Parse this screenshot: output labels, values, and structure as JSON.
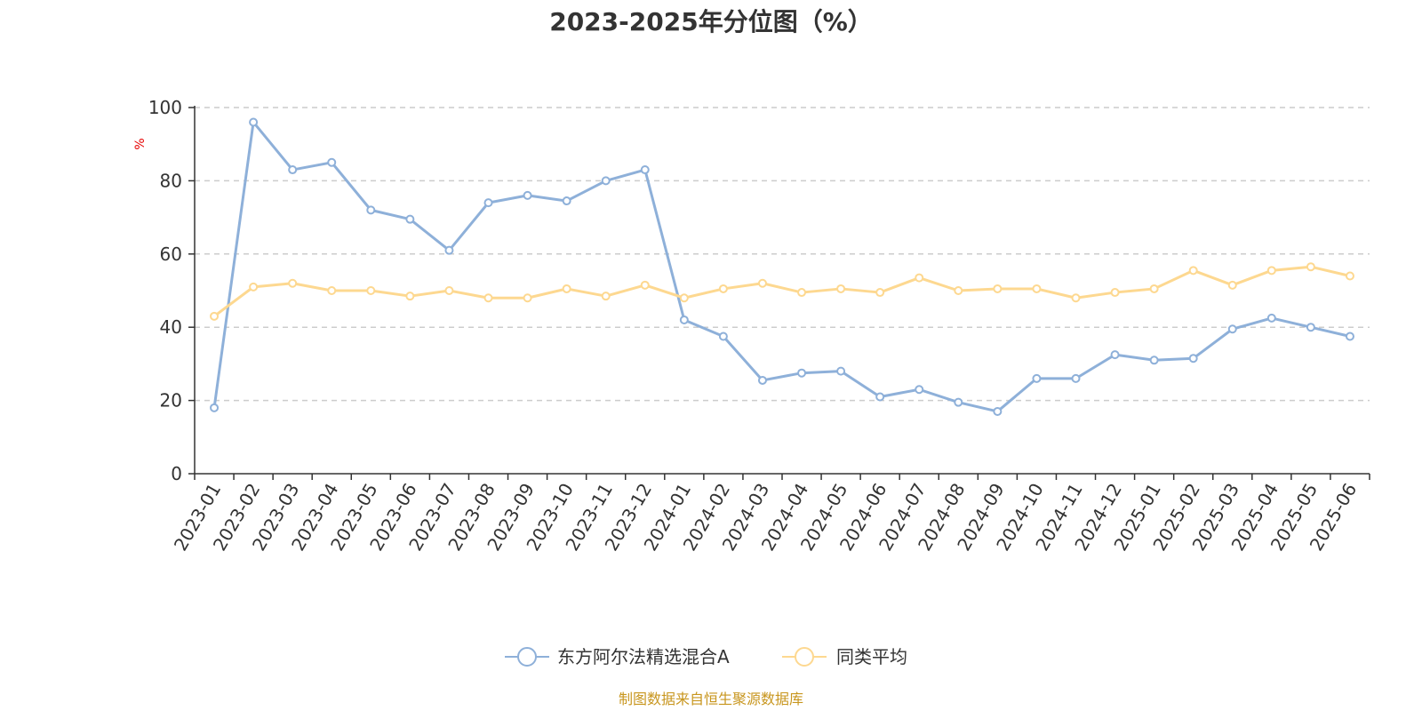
{
  "chart_data": {
    "type": "line",
    "title": "2023-2025年分位图（%）",
    "ylabel": "%",
    "ylim": [
      0,
      100
    ],
    "yticks": [
      0,
      20,
      40,
      60,
      80,
      100
    ],
    "grid": true,
    "legend_position": "bottom",
    "categories": [
      "2023-01",
      "2023-02",
      "2023-03",
      "2023-04",
      "2023-05",
      "2023-06",
      "2023-07",
      "2023-08",
      "2023-09",
      "2023-10",
      "2023-11",
      "2023-12",
      "2024-01",
      "2024-02",
      "2024-03",
      "2024-04",
      "2024-05",
      "2024-06",
      "2024-07",
      "2024-08",
      "2024-09",
      "2024-10",
      "2024-11",
      "2024-12",
      "2025-01",
      "2025-02",
      "2025-03",
      "2025-04",
      "2025-05",
      "2025-06"
    ],
    "series": [
      {
        "name": "东方阿尔法精选混合A",
        "color": "#8eb0d9",
        "values": [
          18,
          96,
          83,
          85,
          72,
          69.5,
          61,
          74,
          76,
          74.5,
          80,
          83,
          42,
          37.5,
          25.5,
          27.5,
          28,
          21,
          23,
          19.5,
          17,
          26,
          26,
          32.5,
          31,
          31.5,
          39.5,
          42.5,
          40,
          37.5
        ]
      },
      {
        "name": "同类平均",
        "color": "#fdd890",
        "values": [
          43,
          51,
          52,
          50,
          50,
          48.5,
          50,
          48,
          48,
          50.5,
          48.5,
          51.5,
          48,
          50.5,
          52,
          49.5,
          50.5,
          49.5,
          53.5,
          50,
          50.5,
          50.5,
          48,
          49.5,
          50.5,
          55.5,
          51.5,
          55.5,
          56.5,
          54
        ]
      }
    ]
  },
  "footer": {
    "source": "制图数据来自恒生聚源数据库"
  }
}
